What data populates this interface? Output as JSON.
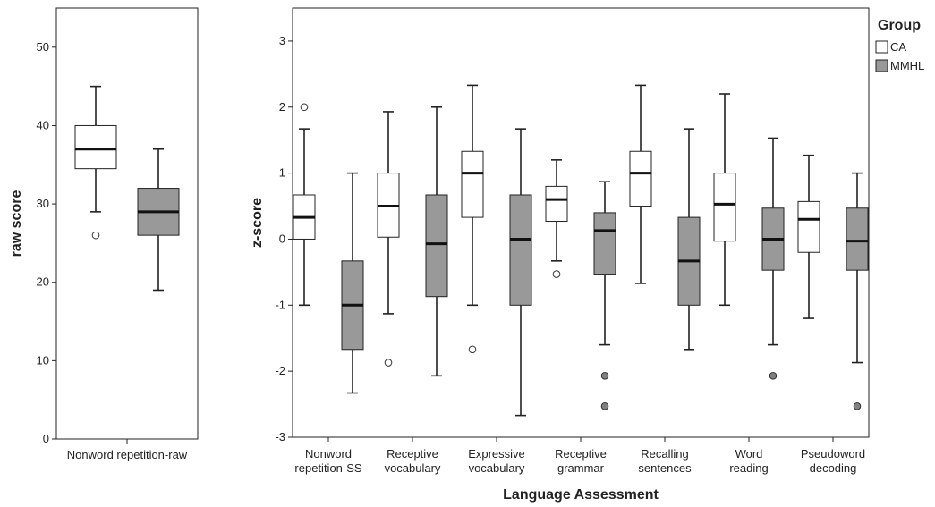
{
  "chart_data": [
    {
      "type": "boxplot",
      "ylabel": "raw score",
      "ylim": [
        0,
        55
      ],
      "yticks": [
        0,
        10,
        20,
        30,
        40,
        50
      ],
      "categories": [
        "Nonword repetition-raw"
      ],
      "groups": [
        "CA",
        "MMHL"
      ],
      "boxes": [
        [
          {
            "whisker_low": 29,
            "q1": 34.5,
            "median": 37,
            "q3": 40,
            "whisker_high": 45,
            "outliers": [
              26
            ]
          },
          {
            "whisker_low": 19,
            "q1": 26,
            "median": 29,
            "q3": 32,
            "whisker_high": 37,
            "outliers": []
          }
        ]
      ]
    },
    {
      "type": "boxplot",
      "ylabel": "z-score",
      "xlabel": "Language Assessment",
      "ylim": [
        -3,
        3.5
      ],
      "yticks": [
        -3,
        -2,
        -1,
        0,
        1,
        2,
        3
      ],
      "categories": [
        [
          "Nonword",
          "repetition-SS"
        ],
        [
          "Receptive",
          "vocabulary"
        ],
        [
          "Expressive",
          "vocabulary"
        ],
        [
          "Receptive",
          "grammar"
        ],
        [
          "Recalling",
          "sentences"
        ],
        [
          "Word",
          "reading"
        ],
        [
          "Pseudoword",
          "decoding"
        ]
      ],
      "groups": [
        "CA",
        "MMHL"
      ],
      "boxes": [
        [
          {
            "whisker_low": -1,
            "q1": 0,
            "median": 0.33,
            "q3": 0.67,
            "whisker_high": 1.67,
            "outliers": [
              2
            ]
          },
          {
            "whisker_low": -2.33,
            "q1": -1.67,
            "median": -1,
            "q3": -0.33,
            "whisker_high": 1,
            "outliers": []
          }
        ],
        [
          {
            "whisker_low": -1.13,
            "q1": 0.03,
            "median": 0.5,
            "q3": 1,
            "whisker_high": 1.93,
            "outliers": [
              -1.87
            ]
          },
          {
            "whisker_low": -2.07,
            "q1": -0.87,
            "median": -0.07,
            "q3": 0.67,
            "whisker_high": 2,
            "outliers": []
          }
        ],
        [
          {
            "whisker_low": -1,
            "q1": 0.33,
            "median": 1,
            "q3": 1.33,
            "whisker_high": 2.33,
            "outliers": [
              -1.67
            ]
          },
          {
            "whisker_low": -2.67,
            "q1": -1,
            "median": 0,
            "q3": 0.67,
            "whisker_high": 1.67,
            "outliers": []
          }
        ],
        [
          {
            "whisker_low": -0.33,
            "q1": 0.27,
            "median": 0.6,
            "q3": 0.8,
            "whisker_high": 1.2,
            "outliers": [
              -0.53
            ]
          },
          {
            "whisker_low": -1.6,
            "q1": -0.53,
            "median": 0.13,
            "q3": 0.4,
            "whisker_high": 0.87,
            "outliers": [
              -2.07,
              -2.53
            ]
          }
        ],
        [
          {
            "whisker_low": -0.67,
            "q1": 0.5,
            "median": 1,
            "q3": 1.33,
            "whisker_high": 2.33,
            "outliers": []
          },
          {
            "whisker_low": -1.67,
            "q1": -1,
            "median": -0.33,
            "q3": 0.33,
            "whisker_high": 1.67,
            "outliers": []
          }
        ],
        [
          {
            "whisker_low": -1,
            "q1": -0.03,
            "median": 0.53,
            "q3": 1,
            "whisker_high": 2.2,
            "outliers": []
          },
          {
            "whisker_low": -1.6,
            "q1": -0.47,
            "median": 0,
            "q3": 0.47,
            "whisker_high": 1.53,
            "outliers": [
              -2.07
            ]
          }
        ],
        [
          {
            "whisker_low": -1.2,
            "q1": -0.2,
            "median": 0.3,
            "q3": 0.57,
            "whisker_high": 1.27,
            "outliers": []
          },
          {
            "whisker_low": -1.87,
            "q1": -0.47,
            "median": -0.03,
            "q3": 0.47,
            "whisker_high": 1,
            "outliers": [
              -2.53
            ]
          }
        ]
      ]
    }
  ],
  "legend": {
    "title": "Group",
    "items": [
      {
        "label": "CA",
        "fill": "#ffffff"
      },
      {
        "label": "MMHL",
        "fill": "#999999"
      }
    ]
  },
  "colors": {
    "CA": "#ffffff",
    "MMHL": "#999999",
    "outlier_MMHL": "#808080",
    "stroke": "#222222"
  }
}
